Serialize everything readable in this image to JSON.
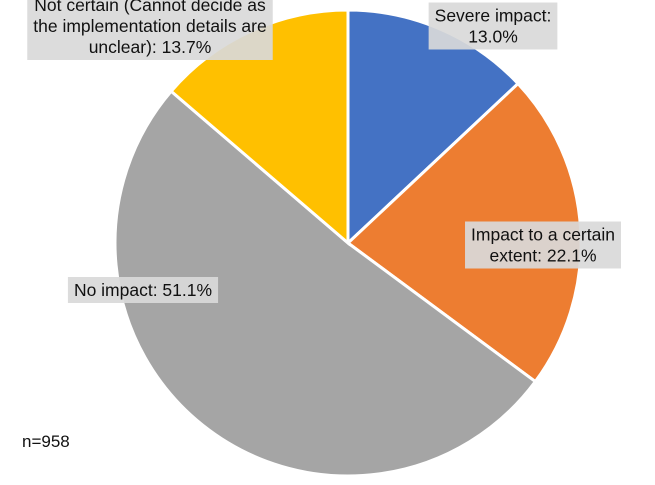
{
  "chart_data": {
    "type": "pie",
    "start_angle_deg": 0,
    "direction": "clockwise",
    "slices": [
      {
        "label": "Severe impact",
        "value": 13.0,
        "display": "Severe impact:\n13.0%",
        "color": "#4472c4"
      },
      {
        "label": "Impact to a certain extent",
        "value": 22.1,
        "display": "Impact to a certain\nextent: 22.1%",
        "color": "#ed7d31"
      },
      {
        "label": "No impact",
        "value": 51.1,
        "display": "No impact: 51.1%",
        "color": "#a5a5a5"
      },
      {
        "label": "Not certain (Cannot decide as the implementation details are unclear)",
        "value": 13.7,
        "display": "Not certain (Cannot decide as\nthe implementation details are\nunclear): 13.7%",
        "color": "#ffc000"
      }
    ],
    "note": "n=958"
  }
}
